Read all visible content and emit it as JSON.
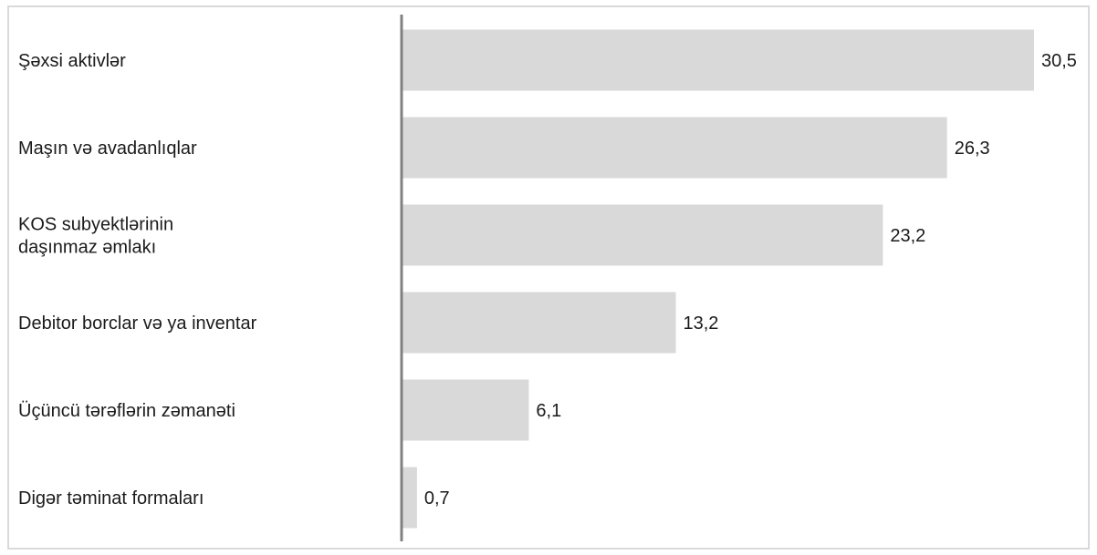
{
  "chart_data": {
    "type": "bar",
    "orientation": "horizontal",
    "categories": [
      "Şəxsi aktivlər",
      "Maşın və avadanlıqlar",
      "KOS subyektlərinin daşınmaz əmlakı",
      "Debitor borclar və ya inventar",
      "Üçüncü tərəflərin zəmanəti",
      "Digər təminat formaları"
    ],
    "category_lines": [
      [
        "Şəxsi aktivlər"
      ],
      [
        "Maşın və avadanlıqlar"
      ],
      [
        "KOS subyektlərinin",
        "daşınmaz əmlakı"
      ],
      [
        "Debitor borclar və ya inventar"
      ],
      [
        "Üçüncü tərəflərin zəmanəti"
      ],
      [
        "Digər təminat formaları"
      ]
    ],
    "values": [
      30.5,
      26.3,
      23.2,
      13.2,
      6.1,
      0.7
    ],
    "value_labels": [
      "30,5",
      "26,3",
      "23,2",
      "13,2",
      "6,1",
      "0,7"
    ],
    "xlim": [
      0,
      30.5
    ],
    "grid": false,
    "legend": "none",
    "colors": {
      "bar": "#d9d9d9",
      "axis": "#808080",
      "frame": "#d9d9d9",
      "text": "#1a1a1a"
    }
  }
}
